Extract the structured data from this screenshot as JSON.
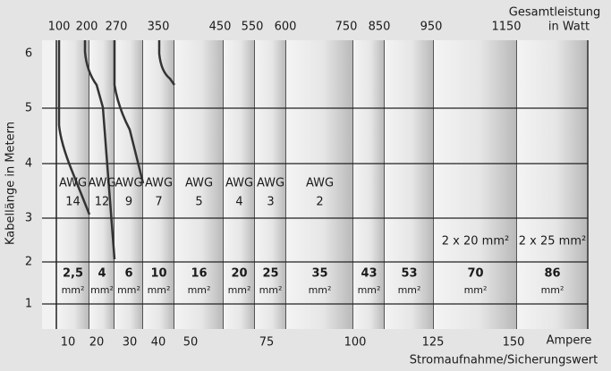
{
  "top_axis": {
    "title": [
      "Gesamtleistung",
      "in Watt"
    ],
    "labels": [
      "100",
      "200",
      "270",
      "350",
      "450",
      "550",
      "600",
      "750",
      "850",
      "950",
      "1150"
    ]
  },
  "bottom_axis": {
    "unit": "Ampere",
    "title": "Stromaufnahme/Sicherungswert",
    "labels": [
      "10",
      "20",
      "30",
      "40",
      "50",
      "75",
      "100",
      "125",
      "150"
    ]
  },
  "y_axis": {
    "title": "Kabellänge in Metern",
    "labels": [
      "6",
      "5",
      "4",
      "3",
      "2",
      "1"
    ]
  },
  "columns": [
    {
      "awg": "AWG",
      "gauge": "14",
      "area": "2,5",
      "unit": "mm²"
    },
    {
      "awg": "AWG",
      "gauge": "12",
      "area": "4",
      "unit": "mm²"
    },
    {
      "awg": "AWG",
      "gauge": "9",
      "area": "6",
      "unit": "mm²"
    },
    {
      "awg": "AWG",
      "gauge": "7",
      "area": "10",
      "unit": "mm²"
    },
    {
      "awg": "AWG",
      "gauge": "5",
      "area": "16",
      "unit": "mm²"
    },
    {
      "awg": "AWG",
      "gauge": "4",
      "area": "20",
      "unit": "mm²"
    },
    {
      "awg": "AWG",
      "gauge": "3",
      "area": "25",
      "unit": "mm²"
    },
    {
      "awg": "AWG",
      "gauge": "2",
      "area": "35",
      "unit": "mm²"
    },
    {
      "area": "43",
      "unit": "mm²"
    },
    {
      "area": "53",
      "unit": "mm²"
    },
    {
      "pair": "2 x 20 mm²",
      "area": "70",
      "unit": "mm²"
    },
    {
      "pair": "2 x 25 mm²",
      "area": "86",
      "unit": "mm²"
    }
  ]
}
